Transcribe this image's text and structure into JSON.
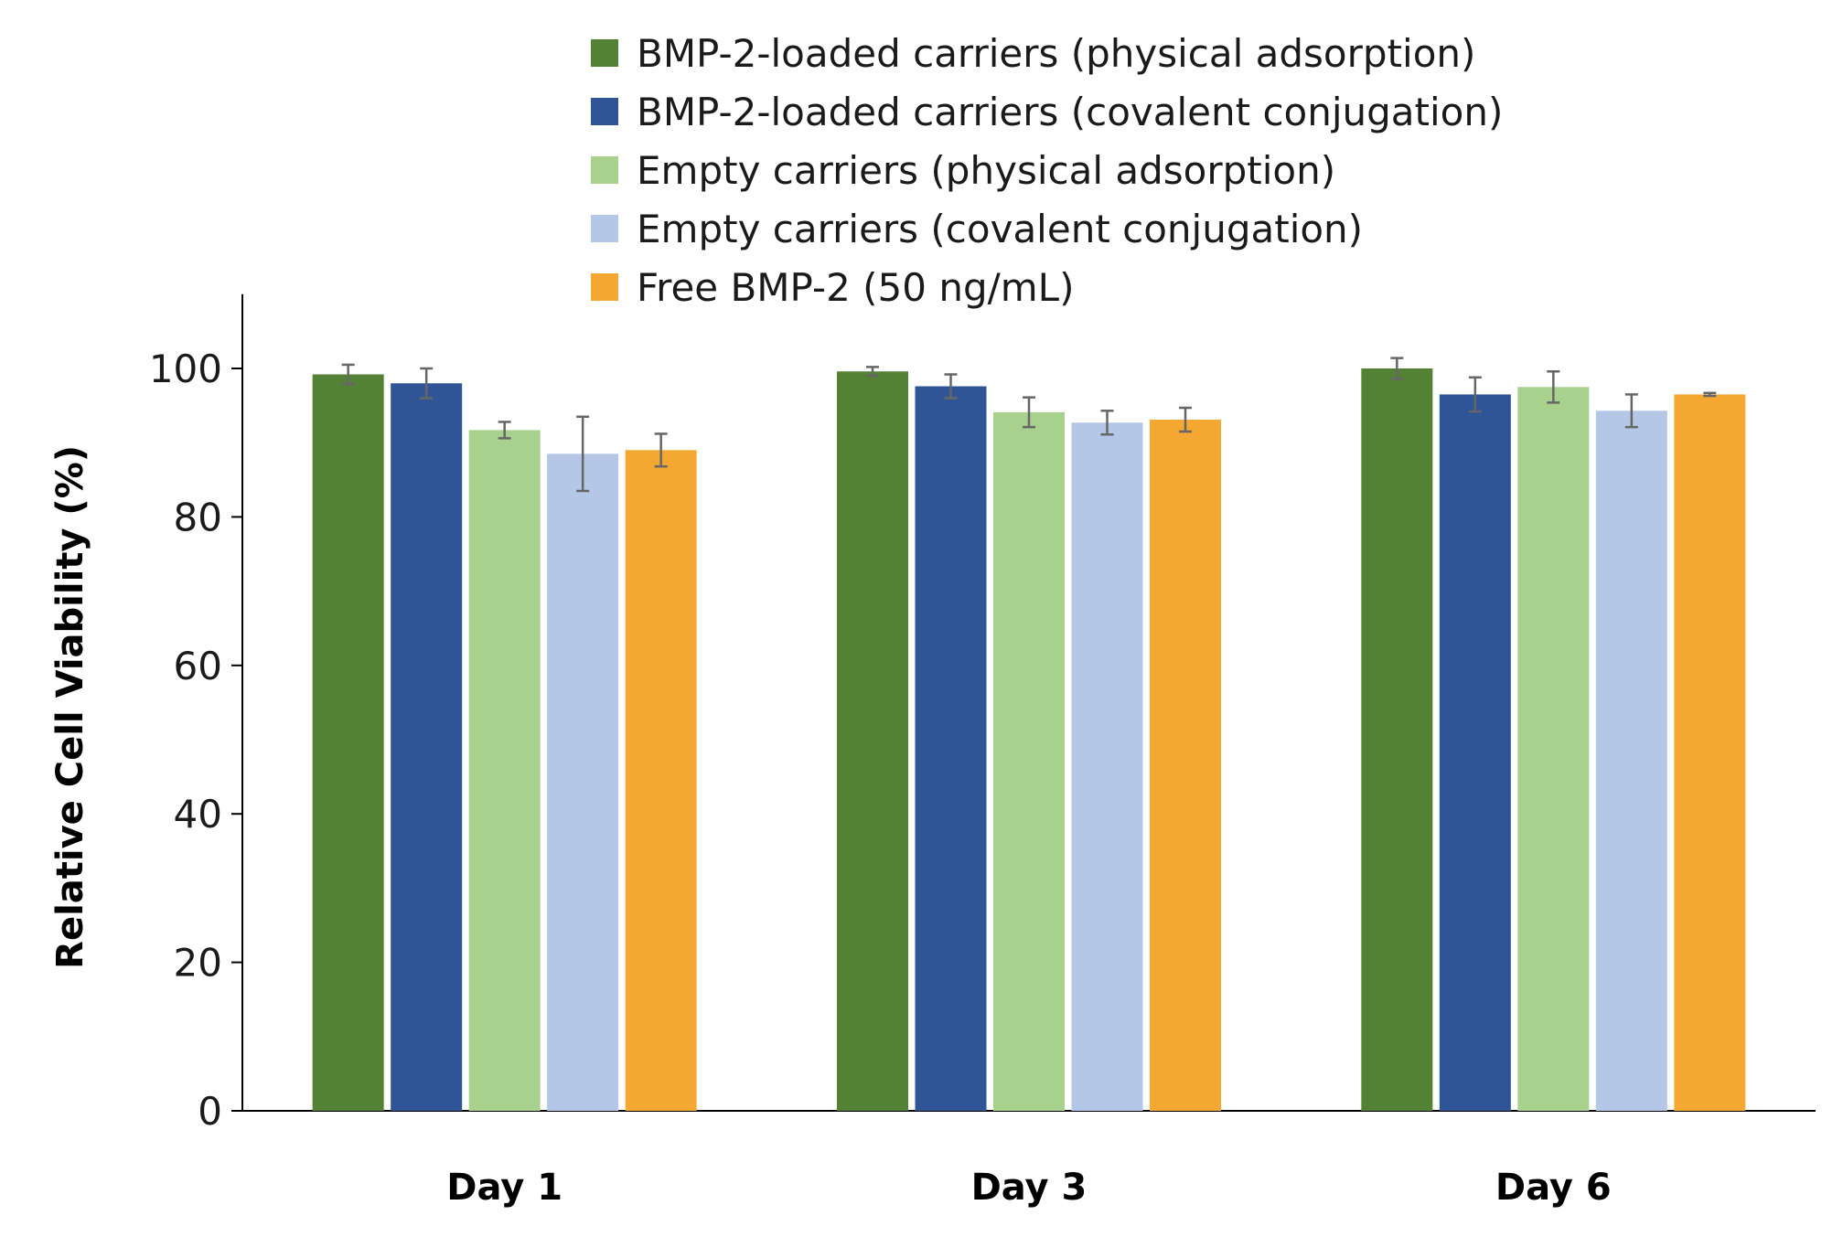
{
  "chart_data": {
    "type": "bar",
    "title": "",
    "xlabel": "",
    "ylabel": "Relative Cell Viability (%)",
    "ylim": [
      0,
      110
    ],
    "yticks": [
      0,
      20,
      40,
      60,
      80,
      100
    ],
    "grid": false,
    "legend_position": "top",
    "categories": [
      "Day 1",
      "Day 3",
      "Day 6"
    ],
    "series": [
      {
        "name": "BMP-2-loaded carriers (physical adsorption)",
        "color": "#548235",
        "values": [
          99.2,
          99.6,
          100.0
        ],
        "errors": [
          1.3,
          0.6,
          1.4
        ]
      },
      {
        "name": "BMP-2-loaded carriers (covalent conjugation)",
        "color": "#2F5597",
        "values": [
          98.0,
          97.6,
          96.5
        ],
        "errors": [
          2.0,
          1.6,
          2.3
        ]
      },
      {
        "name": "Empty carriers (physical adsorption)",
        "color": "#A9D18E",
        "values": [
          91.7,
          94.1,
          97.5
        ],
        "errors": [
          1.1,
          2.0,
          2.1
        ]
      },
      {
        "name": "Empty carriers (covalent conjugation)",
        "color": "#B4C7E7",
        "values": [
          88.5,
          92.7,
          94.3
        ],
        "errors": [
          5.0,
          1.6,
          2.2
        ]
      },
      {
        "name": "Free BMP-2 (50 ng/mL)",
        "color": "#F4A731",
        "values": [
          89.0,
          93.1,
          96.5
        ],
        "errors": [
          2.2,
          1.6,
          0.2
        ]
      }
    ]
  }
}
